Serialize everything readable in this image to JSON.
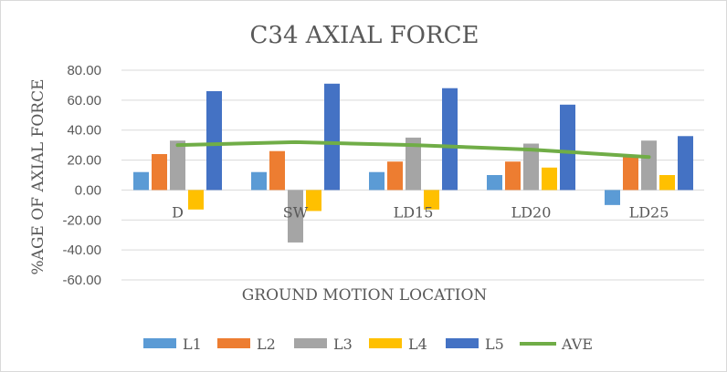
{
  "chart_data": {
    "type": "bar",
    "title": "C34 AXIAL FORCE",
    "xlabel": "GROUND MOTION LOCATION",
    "ylabel": "%AGE OF AXIAL FORCE",
    "ylim": [
      -60,
      80
    ],
    "yticks": [
      "80.00",
      "60.00",
      "40.00",
      "20.00",
      "0.00",
      "-20.00",
      "-40.00",
      "-60.00"
    ],
    "ytick_values": [
      80,
      60,
      40,
      20,
      0,
      -20,
      -40,
      -60
    ],
    "categories": [
      "D",
      "SW",
      "LD15",
      "LD20",
      "LD25"
    ],
    "grid": true,
    "legend_position": "bottom",
    "series": [
      {
        "name": "L1",
        "kind": "bar",
        "color": "#5b9bd5",
        "values": [
          12,
          12,
          12,
          10,
          -10
        ]
      },
      {
        "name": "L2",
        "kind": "bar",
        "color": "#ed7d31",
        "values": [
          24,
          26,
          19,
          19,
          23
        ]
      },
      {
        "name": "L3",
        "kind": "bar",
        "color": "#a5a5a5",
        "values": [
          33,
          -35,
          35,
          31,
          33
        ]
      },
      {
        "name": "L4",
        "kind": "bar",
        "color": "#ffc000",
        "values": [
          -13,
          -14,
          -13,
          15,
          10
        ]
      },
      {
        "name": "L5",
        "kind": "bar",
        "color": "#4472c4",
        "values": [
          66,
          71,
          68,
          57,
          36
        ]
      },
      {
        "name": "AVE",
        "kind": "line",
        "color": "#70ad47",
        "values": [
          30,
          32,
          30,
          27,
          22
        ]
      }
    ]
  }
}
